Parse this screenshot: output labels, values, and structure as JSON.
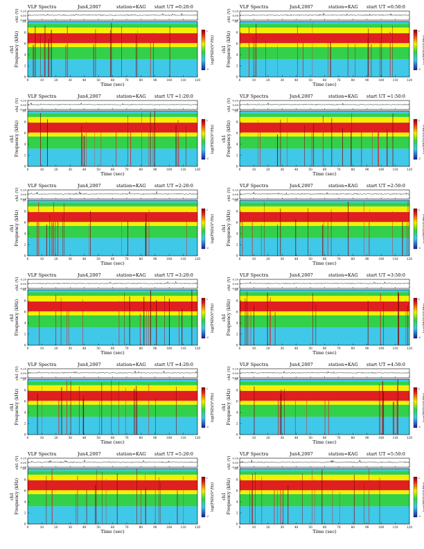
{
  "chart_data": {
    "type": "heatmap",
    "title_prefix": "VLF Spectra",
    "date": "Jun4,2007",
    "station": "station=KAG",
    "start_ut_label": "start UT =",
    "xlabel": "Time (sec)",
    "xlim": [
      0,
      120
    ],
    "xticks": [
      0,
      10,
      20,
      30,
      40,
      50,
      60,
      70,
      80,
      90,
      100,
      110,
      120
    ],
    "waveform": {
      "ylabel": "ch1 (V)",
      "yticks": [
        "0.20",
        "0.00",
        "-0.20"
      ],
      "ylim": [
        -0.2,
        0.2
      ]
    },
    "spectrogram": {
      "ylabel_line1": "ch1",
      "ylabel_line2": "Frequency (kHz)",
      "ylim": [
        0,
        10
      ],
      "yticks": [
        0,
        2,
        4,
        6,
        8,
        10
      ]
    },
    "colorbar": {
      "label": "log(PSD)(V²/Hz)",
      "ticks": [
        "2",
        "-2"
      ]
    },
    "colors": {
      "low": "#1a1aa0",
      "mid_low": "#3fc8e8",
      "mid": "#33d04a",
      "mid_high": "#f5f000",
      "high": "#e02020",
      "max": "#8a0000"
    },
    "panels": [
      {
        "start_ut": "0:20:0"
      },
      {
        "start_ut": "0:50:0"
      },
      {
        "start_ut": "1:20:0"
      },
      {
        "start_ut": "1:50:0"
      },
      {
        "start_ut": "2:20:0"
      },
      {
        "start_ut": "2:50:0"
      },
      {
        "start_ut": "3:20:0"
      },
      {
        "start_ut": "3:50:0"
      },
      {
        "start_ut": "4:20:0"
      },
      {
        "start_ut": "4:50:0"
      },
      {
        "start_ut": "5:20:0"
      },
      {
        "start_ut": "5:50:0"
      }
    ]
  }
}
